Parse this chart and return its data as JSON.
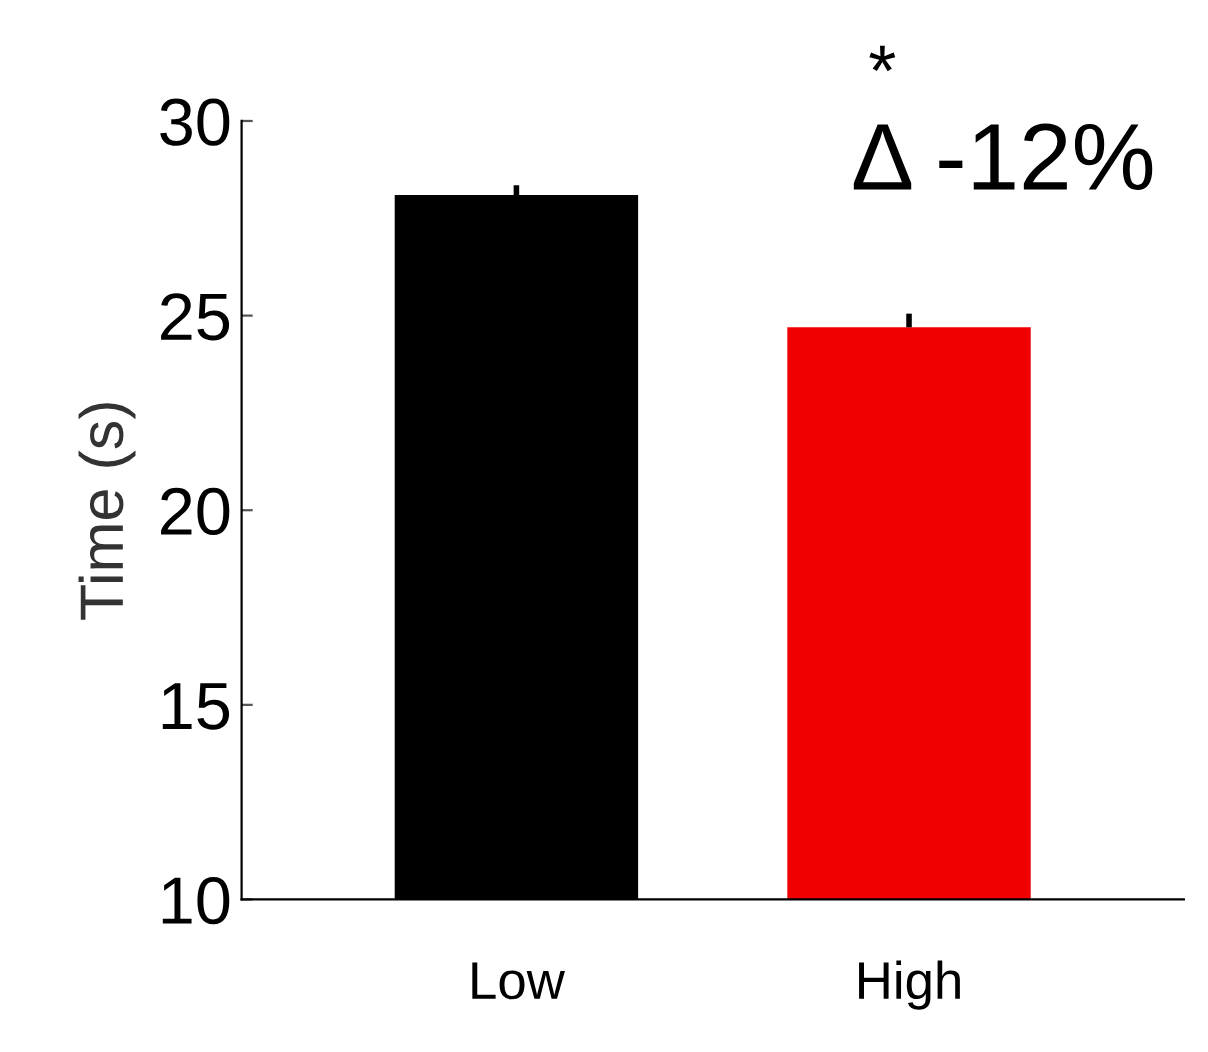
{
  "chart_data": {
    "type": "bar",
    "ylabel": "Time (s)",
    "categories": [
      "Low",
      "High"
    ],
    "values": [
      28.1,
      24.7
    ],
    "colors": [
      "#000000",
      "#f00000"
    ],
    "errors": [
      0.25,
      0.35
    ],
    "ylim": [
      10,
      30
    ],
    "yticks": [
      10,
      15,
      20,
      25,
      30
    ],
    "annotations": [
      "*",
      "Δ -12%"
    ],
    "grid": false,
    "legend": false
  }
}
